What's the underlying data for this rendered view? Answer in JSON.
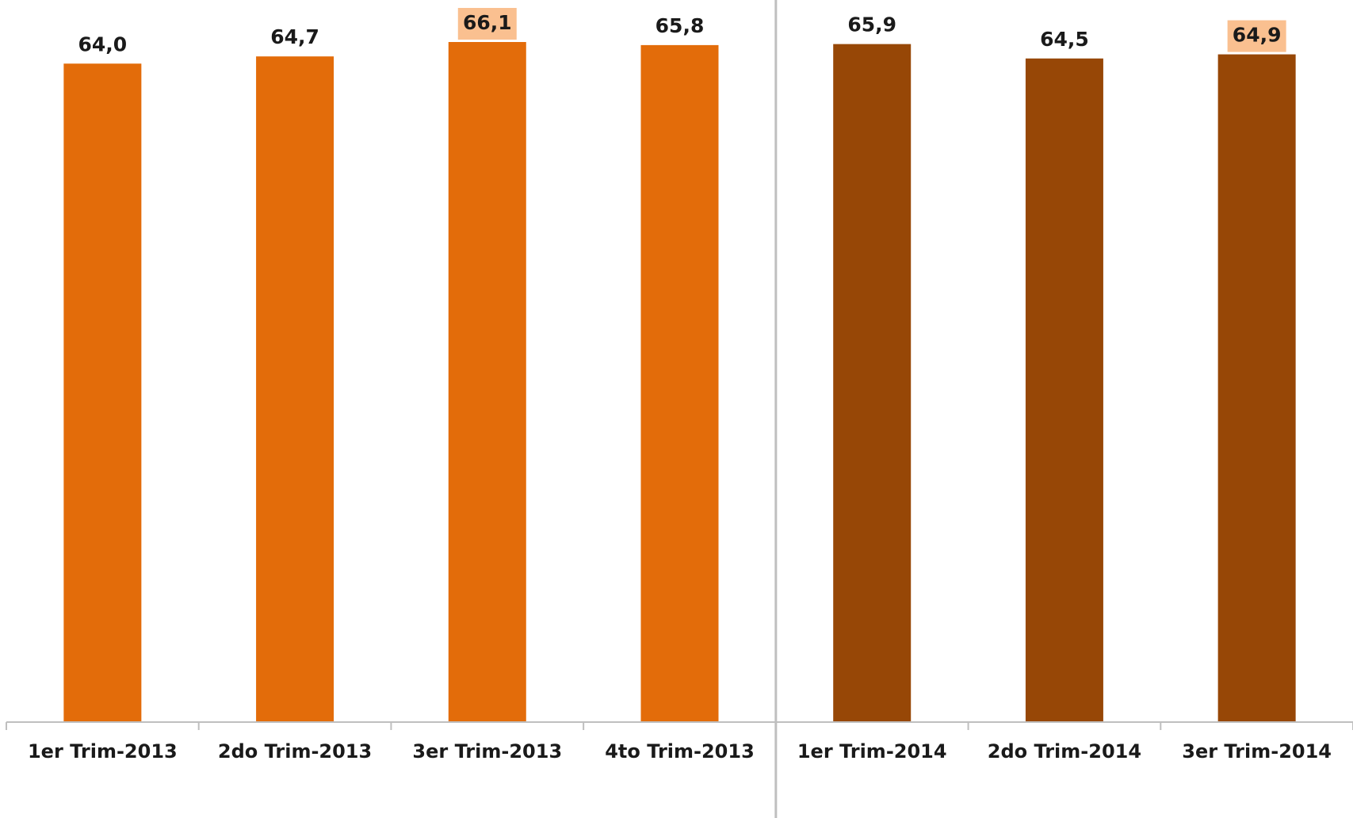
{
  "chart_data": {
    "type": "bar",
    "title": "",
    "xlabel": "",
    "ylabel": "",
    "categories": [
      "1er Trim-2013",
      "2do Trim-2013",
      "3er Trim-2013",
      "4to Trim-2013",
      "1er Trim-2014",
      "2do Trim-2014",
      "3er Trim-2014"
    ],
    "values": [
      64.0,
      64.7,
      66.1,
      65.8,
      65.9,
      64.5,
      64.9
    ],
    "value_labels": [
      "64,0",
      "64,7",
      "66,1",
      "65,8",
      "65,9",
      "64,5",
      "64,9"
    ],
    "highlighted": [
      false,
      false,
      true,
      false,
      false,
      false,
      true
    ],
    "bar_colors": [
      "#E36C0A",
      "#E36C0A",
      "#E36C0A",
      "#E36C0A",
      "#974706",
      "#974706",
      "#974706"
    ],
    "highlight_color": "#FAC090",
    "axis_color": "#BFBFBF",
    "divider_after_index": 3,
    "y_axis_visible": false,
    "grid": false,
    "legend": "none"
  }
}
